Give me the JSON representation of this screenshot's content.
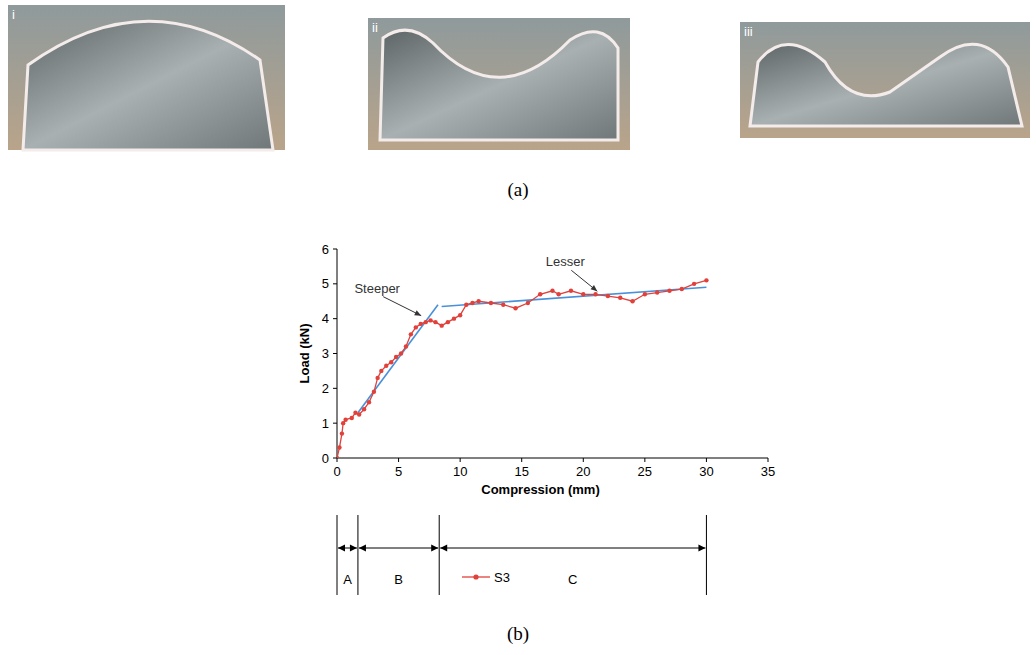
{
  "figure": {
    "photos": [
      {
        "label": "i"
      },
      {
        "label": "ii"
      },
      {
        "label": "iii"
      }
    ],
    "caption": "(a)"
  },
  "chart_data": {
    "type": "line",
    "caption": "(b)",
    "x_label": "Compression (mm)",
    "y_label": "Load (kN)",
    "xlim": [
      0,
      35
    ],
    "ylim": [
      0,
      6
    ],
    "xticks": [
      0,
      5,
      10,
      15,
      20,
      25,
      30,
      35
    ],
    "yticks": [
      0,
      1,
      2,
      3,
      4,
      5,
      6
    ],
    "grid": false,
    "legend": "bottom",
    "series": [
      {
        "name": "S3",
        "color": "#e0413a",
        "marker": "circle",
        "line_style": "solid",
        "x": [
          0,
          0.2,
          0.4,
          0.5,
          0.7,
          1.2,
          1.5,
          1.8,
          2.2,
          2.6,
          3.0,
          3.3,
          3.6,
          4.0,
          4.4,
          4.8,
          5.2,
          5.6,
          6.0,
          6.4,
          6.8,
          7.2,
          7.6,
          8.0,
          8.5,
          9.0,
          9.5,
          10.0,
          10.5,
          11.0,
          11.5,
          12.5,
          13.5,
          14.5,
          15.5,
          16.5,
          17.5,
          18.0,
          19.0,
          20.0,
          21.0,
          22.0,
          23.0,
          24.0,
          25.0,
          26.0,
          27.0,
          28.0,
          29.0,
          30.0
        ],
        "values": [
          0,
          0.3,
          0.7,
          1.0,
          1.1,
          1.15,
          1.3,
          1.25,
          1.4,
          1.6,
          1.9,
          2.3,
          2.5,
          2.65,
          2.75,
          2.9,
          3.0,
          3.2,
          3.55,
          3.75,
          3.85,
          3.9,
          3.95,
          3.9,
          3.8,
          3.9,
          4.0,
          4.1,
          4.4,
          4.45,
          4.5,
          4.45,
          4.4,
          4.3,
          4.45,
          4.7,
          4.8,
          4.7,
          4.8,
          4.7,
          4.7,
          4.65,
          4.6,
          4.5,
          4.7,
          4.75,
          4.8,
          4.85,
          5.0,
          5.1
        ]
      }
    ],
    "trend_lines": [
      {
        "label": "Steeper",
        "color": "#4a90d9",
        "x": [
          1.7,
          8.2
        ],
        "y": [
          1.3,
          4.4
        ],
        "point": [
          7.0,
          4.0
        ]
      },
      {
        "label": "Lesser",
        "color": "#4a90d9",
        "x": [
          8.5,
          30
        ],
        "y": [
          4.35,
          4.9
        ],
        "point": [
          21.3,
          4.7
        ]
      }
    ],
    "phases": [
      {
        "label": "A",
        "start": 0,
        "end": 1.7
      },
      {
        "label": "B",
        "start": 1.7,
        "end": 8.3
      },
      {
        "label": "C",
        "start": 8.3,
        "end": 30
      }
    ]
  }
}
